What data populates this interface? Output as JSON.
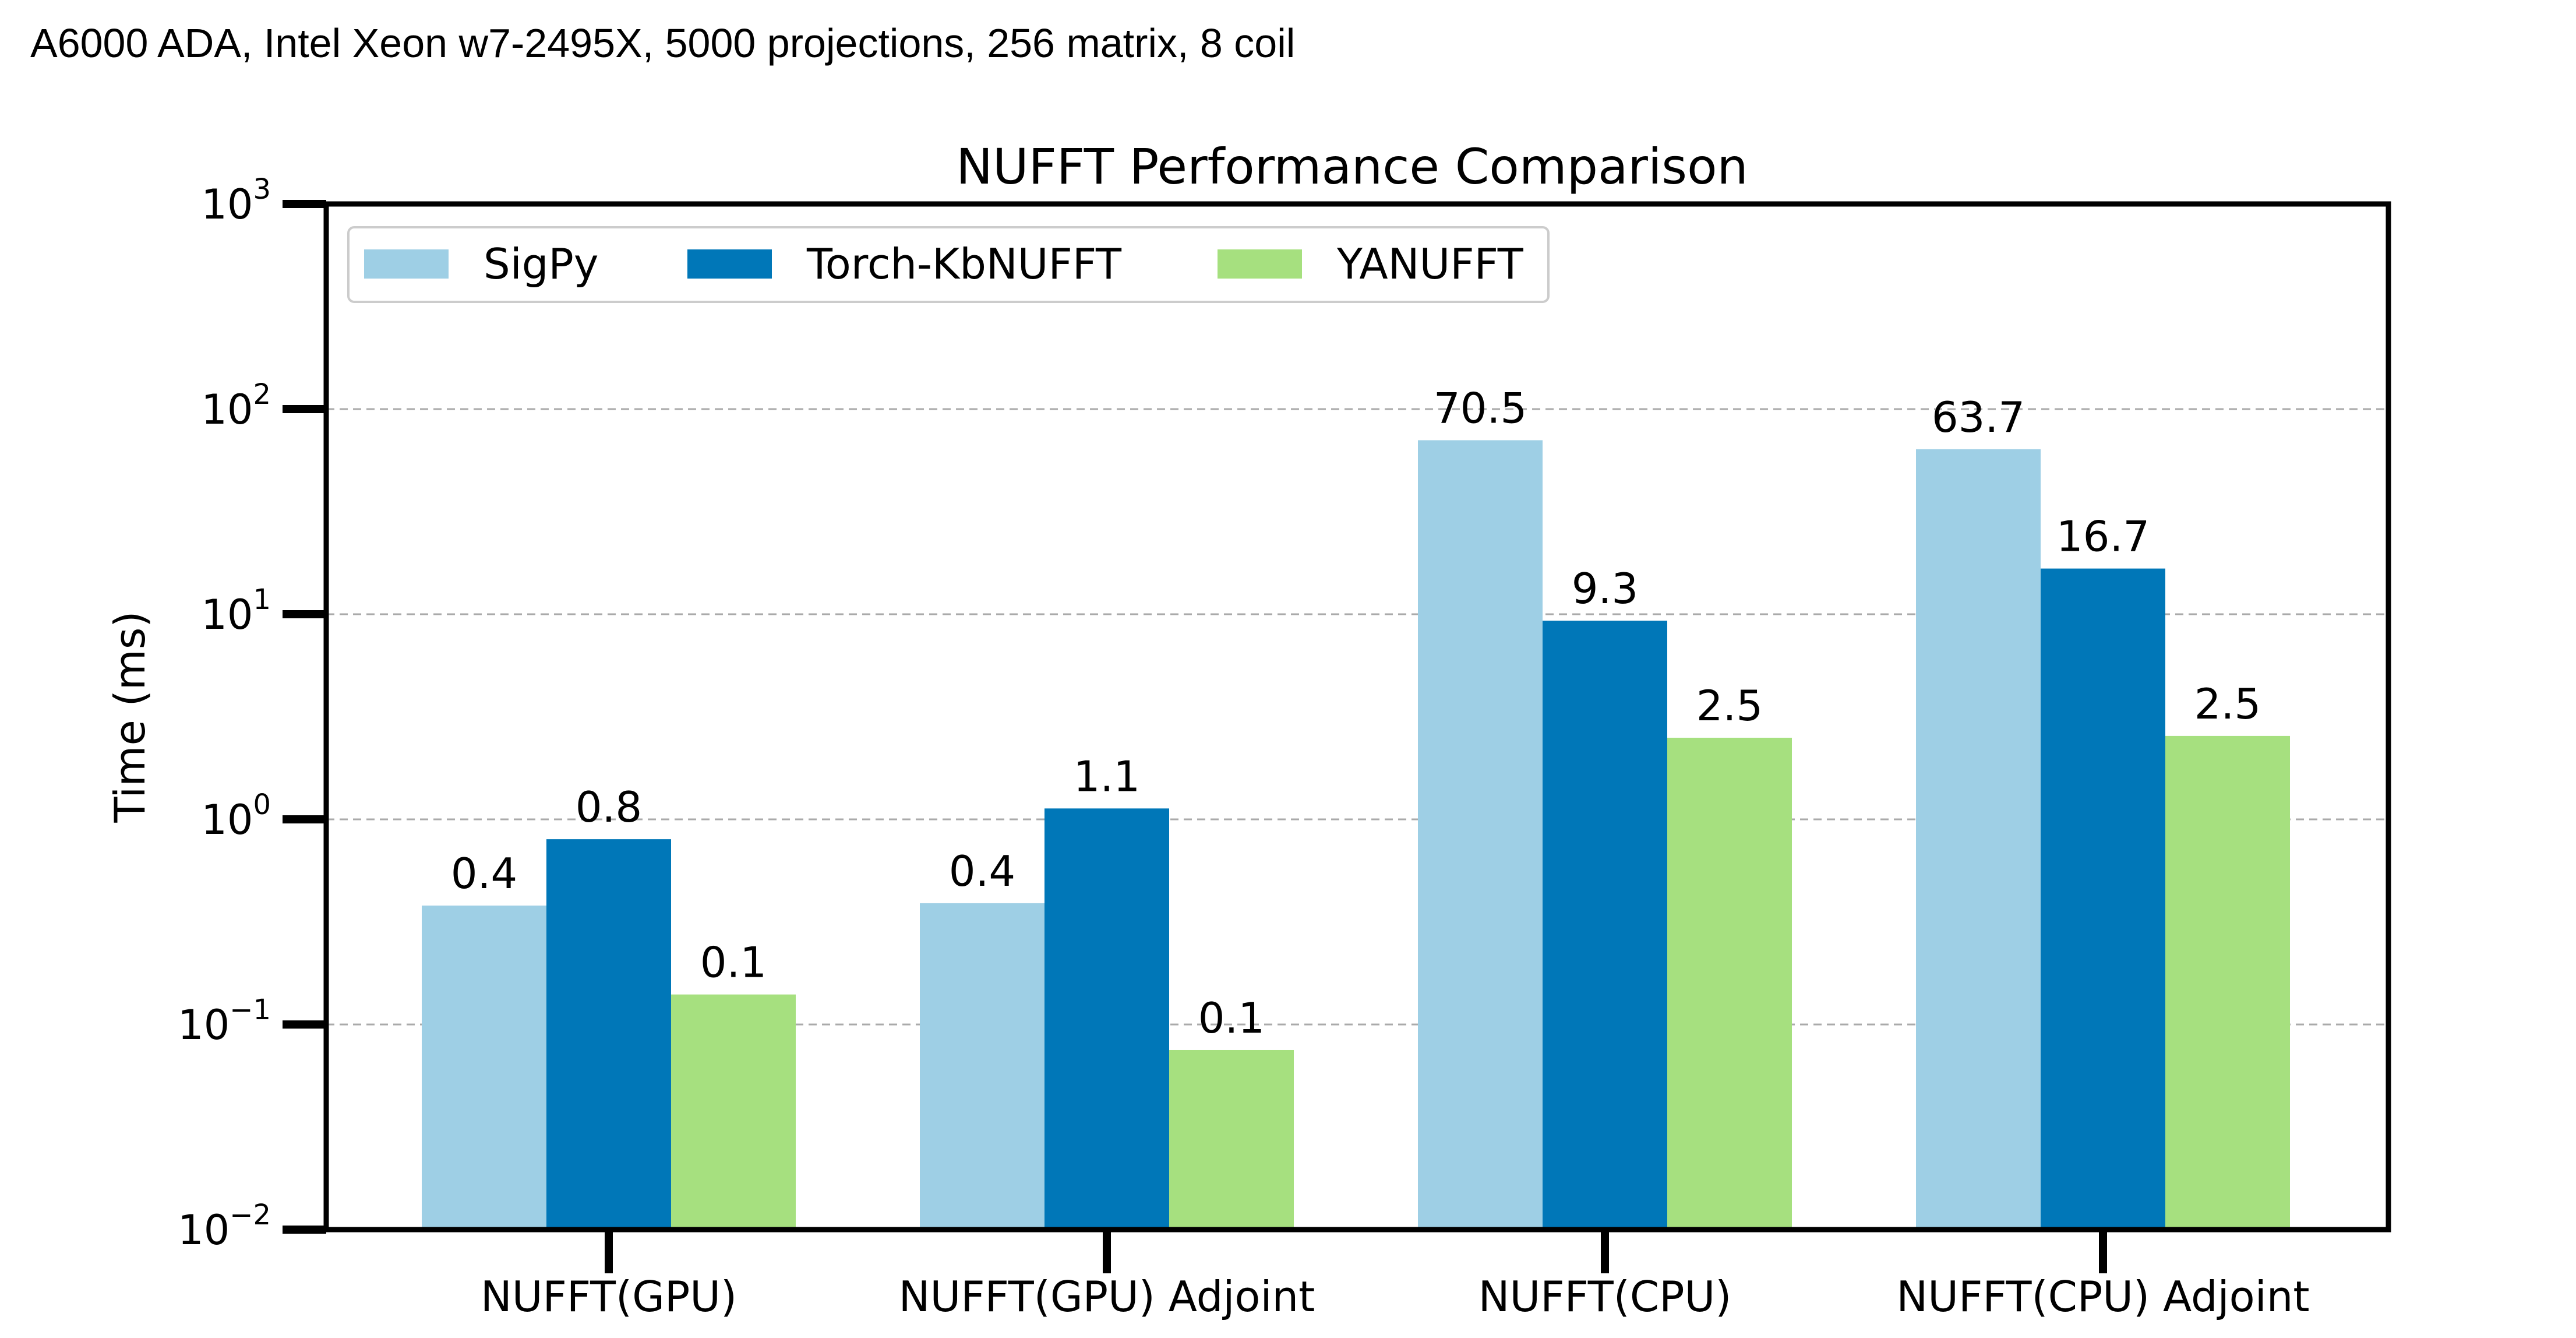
{
  "caption": "A6000 ADA, Intel Xeon w7-2495X, 5000 projections, 256 matrix, 8 coil",
  "chart_data": {
    "type": "bar",
    "title": "NUFFT Performance Comparison",
    "xlabel": "",
    "ylabel": "Time (ms)",
    "yscale": "log",
    "ylim": [
      0.01,
      1000
    ],
    "yticks": [
      {
        "base": "10",
        "exp": "−2",
        "value": 0.01
      },
      {
        "base": "10",
        "exp": "−1",
        "value": 0.1
      },
      {
        "base": "10",
        "exp": "0",
        "value": 1
      },
      {
        "base": "10",
        "exp": "1",
        "value": 10
      },
      {
        "base": "10",
        "exp": "2",
        "value": 100
      },
      {
        "base": "10",
        "exp": "3",
        "value": 1000
      }
    ],
    "grid": "y-dashed",
    "legend": "top-left",
    "categories": [
      "NUFFT(GPU)",
      "NUFFT(GPU) Adjoint",
      "NUFFT(CPU)",
      "NUFFT(CPU) Adjoint"
    ],
    "series": [
      {
        "name": "SigPy",
        "color": "#9ecfe5",
        "values": [
          0.38,
          0.39,
          70.5,
          63.7
        ],
        "labels": [
          "0.4",
          "0.4",
          "70.5",
          "63.7"
        ]
      },
      {
        "name": "Torch-KbNUFFT",
        "color": "#0077b8",
        "values": [
          0.8,
          1.13,
          9.3,
          16.7
        ],
        "labels": [
          "0.8",
          "1.1",
          "9.3",
          "16.7"
        ]
      },
      {
        "name": "YANUFFT",
        "color": "#a6e07f",
        "values": [
          0.14,
          0.075,
          2.5,
          2.55
        ],
        "labels": [
          "0.1",
          "0.1",
          "2.5",
          "2.5"
        ]
      }
    ]
  }
}
